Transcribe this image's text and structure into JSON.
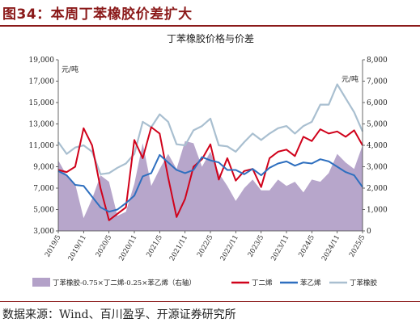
{
  "figure_label": "图34：本周丁苯橡胶价差扩大",
  "source": "数据来源：Wind、百川盈孚、开源证券研究所",
  "colors": {
    "brand": "#8b1a1a",
    "spread_fill": "#b3a1c8",
    "butadiene": "#d0021b",
    "styrene": "#2e6fbf",
    "sbr": "#a9bfd0"
  },
  "chart_data": {
    "type": "line",
    "title": "丁苯橡胶价格与价差",
    "ylabel": "元/吨",
    "y2label": "元/吨",
    "ylim": [
      3000,
      19000
    ],
    "y2lim": [
      0,
      8000
    ],
    "yticks": [
      "3,000",
      "5,000",
      "7,000",
      "9,000",
      "11,000",
      "13,000",
      "15,000",
      "17,000",
      "19,000"
    ],
    "y2ticks": [
      "0",
      "1,000",
      "2,000",
      "3,000",
      "4,000",
      "5,000",
      "6,000",
      "7,000",
      "8,000"
    ],
    "xticks": [
      "2019/5",
      "2019/11",
      "2020/5",
      "2020/11",
      "2021/5",
      "2021/11",
      "2022/5",
      "2022/11",
      "2023/5",
      "2023/11",
      "2024/5",
      "2024/11",
      "2025/5"
    ],
    "grid": false,
    "legend_position": "bottom",
    "x": [
      "2019/5",
      "2019/7",
      "2019/9",
      "2019/11",
      "2020/1",
      "2020/3",
      "2020/5",
      "2020/7",
      "2020/9",
      "2020/11",
      "2021/1",
      "2021/3",
      "2021/5",
      "2021/7",
      "2021/9",
      "2021/11",
      "2022/1",
      "2022/3",
      "2022/5",
      "2022/7",
      "2022/9",
      "2022/11",
      "2023/1",
      "2023/3",
      "2023/5",
      "2023/7",
      "2023/9",
      "2023/11",
      "2024/1",
      "2024/3",
      "2024/5",
      "2024/7",
      "2024/9",
      "2024/11",
      "2025/1",
      "2025/3",
      "2025/5"
    ],
    "series": [
      {
        "name": "丁苯橡胶-0.75×丁二烯-0.25×苯乙烯（右轴）",
        "axis": "right",
        "type": "area",
        "values": [
          3300,
          2600,
          2200,
          600,
          1500,
          2600,
          2300,
          700,
          900,
          2200,
          4100,
          2100,
          2900,
          3600,
          2900,
          4200,
          4100,
          3000,
          3700,
          2700,
          2100,
          1400,
          2000,
          2400,
          1900,
          1900,
          2400,
          2100,
          2300,
          1800,
          2400,
          2300,
          2700,
          3600,
          3200,
          2900,
          4000
        ]
      },
      {
        "name": "丁二烯",
        "axis": "left",
        "type": "line",
        "values": [
          8700,
          8500,
          9000,
          12600,
          11000,
          7000,
          4000,
          4600,
          5200,
          11500,
          9800,
          12700,
          12100,
          8000,
          4300,
          6000,
          9000,
          9700,
          11100,
          7800,
          9800,
          7700,
          8600,
          8800,
          7100,
          9800,
          10400,
          10600,
          10000,
          11800,
          11400,
          12500,
          12100,
          12300,
          11800,
          12400,
          11000
        ]
      },
      {
        "name": "苯乙烯",
        "axis": "left",
        "type": "line",
        "values": [
          8600,
          8200,
          7300,
          7200,
          6200,
          5200,
          4800,
          5000,
          5600,
          6300,
          8100,
          8400,
          10100,
          9400,
          8700,
          8400,
          8700,
          9900,
          9600,
          9400,
          8700,
          8700,
          8300,
          8800,
          8200,
          8900,
          9300,
          9500,
          9100,
          9400,
          9300,
          9700,
          9500,
          9000,
          8500,
          8200,
          7100
        ]
      },
      {
        "name": "丁苯橡胶",
        "axis": "left",
        "type": "line",
        "values": [
          11300,
          10200,
          10800,
          11000,
          10400,
          8300,
          8400,
          8900,
          9300,
          10200,
          13200,
          12700,
          13900,
          13200,
          11100,
          11000,
          12400,
          12800,
          13500,
          11000,
          10900,
          10400,
          11300,
          12100,
          11500,
          12100,
          12600,
          12800,
          12100,
          12800,
          13200,
          14800,
          14800,
          16700,
          15400,
          14100,
          12300
        ]
      }
    ]
  }
}
